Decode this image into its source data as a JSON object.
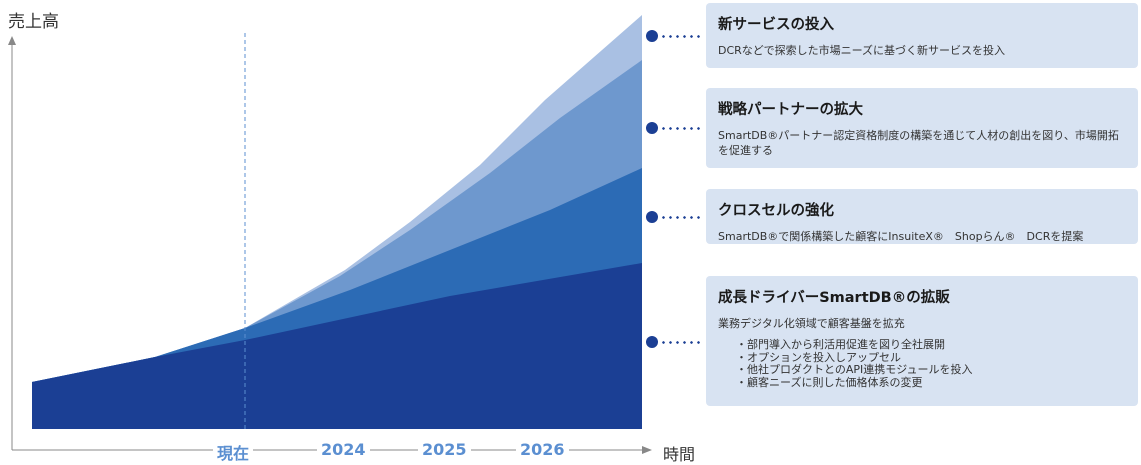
{
  "chart_data": {
    "type": "area",
    "stacked": true,
    "y_axis_label": "売上高",
    "x_axis_label": "時間",
    "x_ticks": [
      "現在",
      "2024",
      "2025",
      "2026"
    ],
    "vertical_marker_at": "現在",
    "series": [
      {
        "name": "成長ドライバーSmartDB®の拡販",
        "color": "#1b3f94"
      },
      {
        "name": "クロスセルの強化",
        "color": "#2c6bb5"
      },
      {
        "name": "戦略パートナーの拡大",
        "color": "#6e98ce"
      },
      {
        "name": "新サービスの投入",
        "color": "#a9c0e3"
      }
    ]
  },
  "cards": [
    {
      "title": "新サービスの投入",
      "desc": "DCRなどで探索した市場ニーズに基づく新サービスを投入"
    },
    {
      "title": "戦略パートナーの拡大",
      "desc": "SmartDB®パートナー認定資格制度の構築を通じて人材の創出を図り、市場開拓を促進する"
    },
    {
      "title": "クロスセルの強化",
      "desc": "SmartDB®で関係構築した顧客にInsuiteX®　Shopらん®　DCRを提案"
    },
    {
      "title": "成長ドライバーSmartDB®の拡販",
      "desc": "業務デジタル化領域で顧客基盤を拡充",
      "bullets": [
        "部門導入から利活用促進を図り全社展開",
        "オプションを投入しアップセル",
        "他社プロダクトとのAPI連携モジュールを投入",
        "顧客ニーズに則した価格体系の変更"
      ]
    }
  ],
  "colors": {
    "card_bg": "#d8e3f2",
    "tick_label": "#5b8fd1",
    "axis": "#888888",
    "connector": "#1b3f94"
  }
}
